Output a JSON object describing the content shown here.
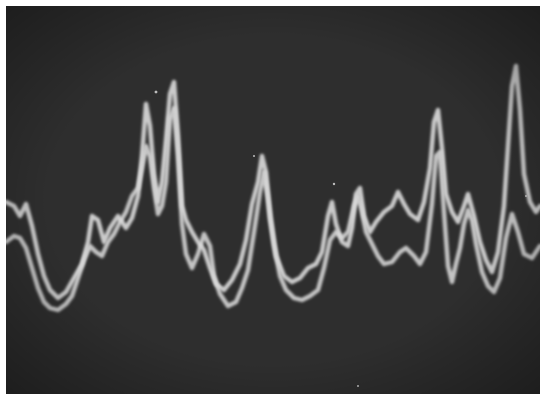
{
  "image": {
    "kind": "oscilloscope-photograph",
    "palette": {
      "background": "#2b2b2b",
      "trace": "#d8d8d8",
      "border": "#ffffff"
    },
    "traces": 2,
    "text": []
  }
}
